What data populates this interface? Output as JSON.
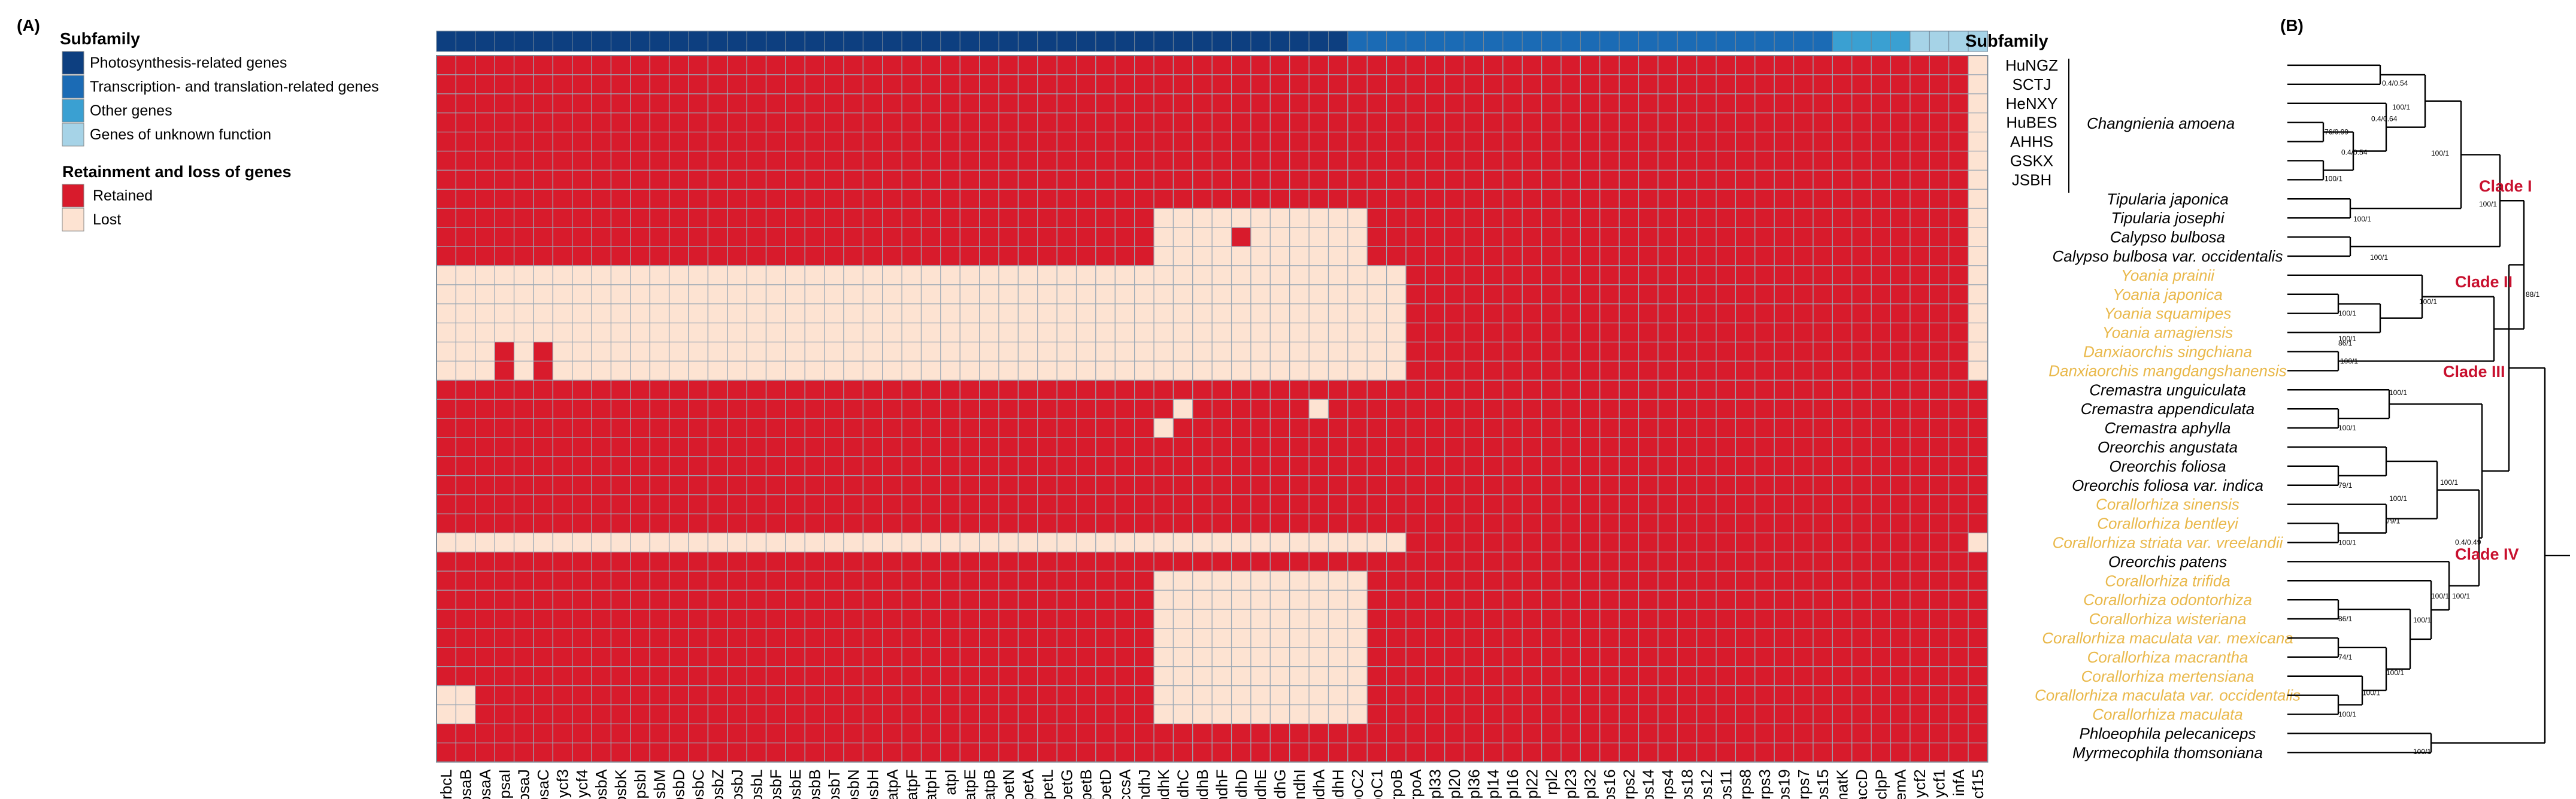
{
  "panel_a_label": "(A)",
  "panel_b_label": "(B)",
  "legend": {
    "subfamily_title": "Subfamily",
    "subfamily_items": [
      {
        "label": "Photosynthesis-related genes",
        "color": "#0d3f80"
      },
      {
        "label": "Transcription- and translation-related genes",
        "color": "#1b6bb5"
      },
      {
        "label": "Other genes",
        "color": "#3aa0d2"
      },
      {
        "label": "Genes of unknown function",
        "color": "#a6d3e7"
      }
    ],
    "retain_title": "Retainment and loss of genes",
    "retain_items": [
      {
        "label": "Retained",
        "color": "#d81b2c"
      },
      {
        "label": "Lost",
        "color": "#fde3d2"
      }
    ]
  },
  "heatmap_header_label": "Subfamily",
  "colors": {
    "retained": "#d81b2c",
    "lost": "#fde3d2",
    "grid": "#9aa7b4",
    "yellow_taxon": "#e9b84a",
    "clade_label": "#c8102e",
    "subfamily": [
      "#0d3f80",
      "#1b6bb5",
      "#3aa0d2",
      "#a6d3e7"
    ]
  },
  "genes": [
    "rbcL",
    "psaB",
    "psaA",
    "psaI",
    "psaJ",
    "psaC",
    "ycf3",
    "ycf4",
    "psbA",
    "psbK",
    "psbI",
    "psbM",
    "psbD",
    "psbC",
    "psbZ",
    "psbJ",
    "psbL",
    "psbF",
    "psbE",
    "psbB",
    "psbT",
    "psbN",
    "psbH",
    "atpA",
    "atpF",
    "atpH",
    "atpI",
    "atpE",
    "atpB",
    "petN",
    "petA",
    "petL",
    "petG",
    "petB",
    "petD",
    "ccsA",
    "ndhJ",
    "ndhK",
    "ndhC",
    "ndhB",
    "ndhF",
    "ndhD",
    "ndhE",
    "ndhG",
    "ndhI",
    "ndhA",
    "ndhH",
    "rpoC2",
    "rpoC1",
    "rpoB",
    "rpoA",
    "rpl33",
    "rpl20",
    "rpl36",
    "rpl14",
    "rpl16",
    "rpl22",
    "rpl2",
    "rpl23",
    "rpl32",
    "rps16",
    "rps2",
    "rps14",
    "rps4",
    "rps18",
    "rps12",
    "rps11",
    "rps8",
    "rps3",
    "rps19",
    "rps7",
    "rps15",
    "matK",
    "accD",
    "clpP",
    "cemA",
    "ycf2",
    "ycf1",
    "infA",
    "ycf15"
  ],
  "gene_groups": [
    0,
    0,
    0,
    0,
    0,
    0,
    0,
    0,
    0,
    0,
    0,
    0,
    0,
    0,
    0,
    0,
    0,
    0,
    0,
    0,
    0,
    0,
    0,
    0,
    0,
    0,
    0,
    0,
    0,
    0,
    0,
    0,
    0,
    0,
    0,
    0,
    0,
    0,
    0,
    0,
    0,
    0,
    0,
    0,
    0,
    0,
    0,
    1,
    1,
    1,
    1,
    1,
    1,
    1,
    1,
    1,
    1,
    1,
    1,
    1,
    1,
    1,
    1,
    1,
    1,
    1,
    1,
    1,
    1,
    1,
    1,
    1,
    2,
    2,
    2,
    2,
    3,
    3,
    3,
    3
  ],
  "taxa": [
    {
      "name": "HuNGZ",
      "italic": false,
      "yellow": false
    },
    {
      "name": "SCTJ",
      "italic": false,
      "yellow": false
    },
    {
      "name": "HeNXY",
      "italic": false,
      "yellow": false
    },
    {
      "name": "HuBES",
      "italic": false,
      "yellow": false
    },
    {
      "name": "AHHS",
      "italic": false,
      "yellow": false
    },
    {
      "name": "GSKX",
      "italic": false,
      "yellow": false
    },
    {
      "name": "JSBH",
      "italic": false,
      "yellow": false
    },
    {
      "name": "Tipularia japonica",
      "italic": true,
      "yellow": false
    },
    {
      "name": "Tipularia josephi",
      "italic": true,
      "yellow": false
    },
    {
      "name": "Calypso bulbosa",
      "italic": true,
      "yellow": false
    },
    {
      "name": "Calypso bulbosa var. occidentalis",
      "italic": true,
      "yellow": false
    },
    {
      "name": "Yoania prainii",
      "italic": true,
      "yellow": true
    },
    {
      "name": "Yoania japonica",
      "italic": true,
      "yellow": true
    },
    {
      "name": "Yoania squamipes",
      "italic": true,
      "yellow": true
    },
    {
      "name": "Yoania amagiensis",
      "italic": true,
      "yellow": true
    },
    {
      "name": "Danxiaorchis singchiana",
      "italic": true,
      "yellow": true
    },
    {
      "name": "Danxiaorchis mangdangshanensis",
      "italic": true,
      "yellow": true
    },
    {
      "name": "Cremastra unguiculata",
      "italic": true,
      "yellow": false
    },
    {
      "name": "Cremastra appendiculata",
      "italic": true,
      "yellow": false
    },
    {
      "name": "Cremastra aphylla",
      "italic": true,
      "yellow": false
    },
    {
      "name": "Oreorchis angustata",
      "italic": true,
      "yellow": false
    },
    {
      "name": "Oreorchis foliosa",
      "italic": true,
      "yellow": false
    },
    {
      "name": "Oreorchis foliosa var. indica",
      "italic": true,
      "yellow": false
    },
    {
      "name": "Corallorhiza sinensis",
      "italic": true,
      "yellow": true
    },
    {
      "name": "Corallorhiza bentleyi",
      "italic": true,
      "yellow": true
    },
    {
      "name": "Corallorhiza striata var. vreelandii",
      "italic": true,
      "yellow": true
    },
    {
      "name": "Oreorchis patens",
      "italic": true,
      "yellow": false
    },
    {
      "name": "Corallorhiza trifida",
      "italic": true,
      "yellow": true
    },
    {
      "name": "Corallorhiza odontorhiza",
      "italic": true,
      "yellow": true
    },
    {
      "name": "Corallorhiza wisteriana",
      "italic": true,
      "yellow": true
    },
    {
      "name": "Corallorhiza maculata var. mexicana",
      "italic": true,
      "yellow": true
    },
    {
      "name": "Corallorhiza macrantha",
      "italic": true,
      "yellow": true
    },
    {
      "name": "Corallorhiza mertensiana",
      "italic": true,
      "yellow": true
    },
    {
      "name": "Corallorhiza maculata var. occidentalis",
      "italic": true,
      "yellow": true
    },
    {
      "name": "Corallorhiza maculata",
      "italic": true,
      "yellow": true
    },
    {
      "name": "Phloeophila pelecaniceps",
      "italic": true,
      "yellow": false
    },
    {
      "name": "Myrmecophila thomsoniana",
      "italic": true,
      "yellow": false
    }
  ],
  "species_bracket_label": "Changnienia amoena",
  "clades": [
    "Clade I",
    "Clade II",
    "Clade III",
    "Clade IV"
  ],
  "matrix": [
    "11111111111111111111111111111111111111111111111111111111111111111111111111111110",
    "11111111111111111111111111111111111111111111111111111111111111111111111111111110",
    "11111111111111111111111111111111111111111111111111111111111111111111111111111110",
    "11111111111111111111111111111111111111111111111111111111111111111111111111111110",
    "11111111111111111111111111111111111111111111111111111111111111111111111111111110",
    "11111111111111111111111111111111111111111111111111111111111111111111111111111110",
    "11111111111111111111111111111111111111111111111111111111111111111111111111111110",
    "11111111111111111111111111111111111111111111111111111111111111111111111111111110",
    "11111111111111111111111111111111111110000000000011111111111111111111111111111110",
    "11111111111111111111111111111111111110000100000011111111111111111111111111111110",
    "11111111111111111111111111111111111110000000000011111111111111111111111111111110",
    "00000000000000000000000000000000000000000000000000111111111111111111111111111110",
    "00000000000000000000000000000000000000000000000000111111111111111111111111111110",
    "00000000000000000000000000000000000000000000000000111111111111111111111111111110",
    "00000000000000000000000000000000000000000000000000111111111111111111111111111110",
    "00010100000000000000000000000000000000000000000000111111111111111111111111111110",
    "00010100000000000000000000000000000000000000000000111111111111111111111111111110",
    "11111111111111111111111111111111111111111111111111111111111111111111111111111111",
    "11111111111111111111111111111111111111011111101111111111111111111111111111111111",
    "11111111111111111111111111111111111110111111111111111111111111111111111111111111",
    "11111111111111111111111111111111111111111111111111111111111111111111111111111111",
    "11111111111111111111111111111111111111111111111111111111111111111111111111111111",
    "11111111111111111111111111111111111111111111111111111111111111111111111111111111",
    "11111111111111111111111111111111111111111111111111111111111111111111111111111111",
    "11111111111111111111111111111111111111111111111111111111111111111111111111111111",
    "00000000000000000000000000000000000000000000000000111111111111111111111111111110",
    "11111111111111111111111111111111111111111111111111111111111111111111111111111111",
    "11111111111111111111111111111111111110000000000011111111111111111111111111111111",
    "11111111111111111111111111111111111110000000000011111111111111111111111111111111",
    "11111111111111111111111111111111111110000000000011111111111111111111111111111111",
    "11111111111111111111111111111111111110000000000011111111111111111111111111111111",
    "11111111111111111111111111111111111110000000000011111111111111111111111111111111",
    "11111111111111111111111111111111111110000000000011111111111111111111111111111111",
    "00111111111111111111111111111111111110000000000011111111111111111111111111111111",
    "00111111111111111111111111111111111110000000000011111111111111111111111111111111",
    "11111111111111111111111111111111111111111111111111111111111111111111111111111111",
    "11111111111111111111111111111111111111111111111111111111111111111111111111111111"
  ],
  "matrix_note": "",
  "support_values": [
    "100/1",
    "76/0.99",
    "0.4/0.54",
    "0.4/0.64",
    "0.4/0.54",
    "100/1",
    "100/1",
    "100/1",
    "100/1",
    "100/1",
    "100/1",
    "86/1",
    "100/1",
    "100/1",
    "100/1",
    "88/1",
    "100/1",
    "100/1",
    "79/1",
    "100/1",
    "100/1",
    "79/1",
    "100/1",
    "100/1",
    "100/1",
    "74/1",
    "100/1",
    "86/1",
    "100/1",
    "100/1",
    "100/1",
    "0.4/0.49",
    "100/1"
  ]
}
